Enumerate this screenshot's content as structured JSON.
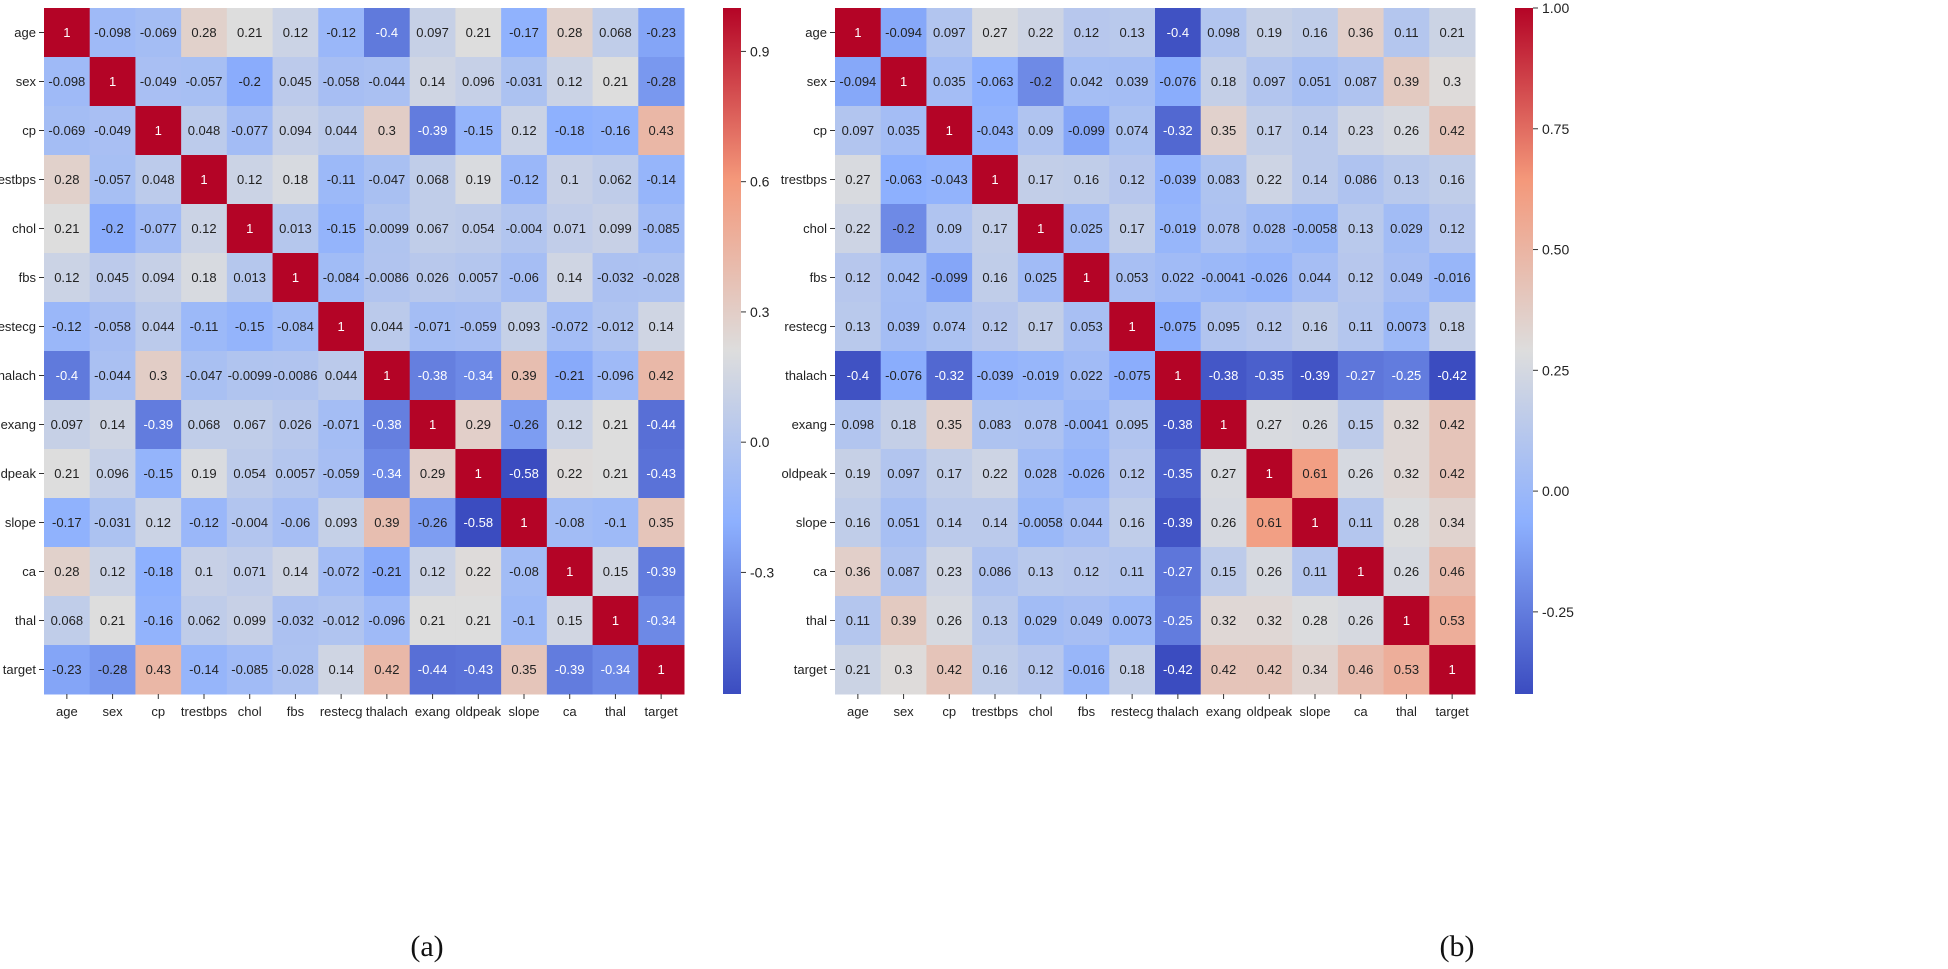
{
  "chart_data": [
    {
      "type": "heatmap",
      "caption": "(a)",
      "labels": [
        "age",
        "sex",
        "cp",
        "trestbps",
        "chol",
        "fbs",
        "restecg",
        "thalach",
        "exang",
        "oldpeak",
        "slope",
        "ca",
        "thal",
        "target"
      ],
      "cell_text": [
        [
          "1",
          "-0.098",
          "-0.069",
          "0.28",
          "0.21",
          "0.12",
          "-0.12",
          "-0.4",
          "0.097",
          "0.21",
          "-0.17",
          "0.28",
          "0.068",
          "-0.23"
        ],
        [
          "-0.098",
          "1",
          "-0.049",
          "-0.057",
          "-0.2",
          "0.045",
          "-0.058",
          "-0.044",
          "0.14",
          "0.096",
          "-0.031",
          "0.12",
          "0.21",
          "-0.28"
        ],
        [
          "-0.069",
          "-0.049",
          "1",
          "0.048",
          "-0.077",
          "0.094",
          "0.044",
          "0.3",
          "-0.39",
          "-0.15",
          "0.12",
          "-0.18",
          "-0.16",
          "0.43"
        ],
        [
          "0.28",
          "-0.057",
          "0.048",
          "1",
          "0.12",
          "0.18",
          "-0.11",
          "-0.047",
          "0.068",
          "0.19",
          "-0.12",
          "0.1",
          "0.062",
          "-0.14"
        ],
        [
          "0.21",
          "-0.2",
          "-0.077",
          "0.12",
          "1",
          "0.013",
          "-0.15",
          "-0.0099",
          "0.067",
          "0.054",
          "-0.004",
          "0.071",
          "0.099",
          "-0.085"
        ],
        [
          "0.12",
          "0.045",
          "0.094",
          "0.18",
          "0.013",
          "1",
          "-0.084",
          "-0.0086",
          "0.026",
          "0.0057",
          "-0.06",
          "0.14",
          "-0.032",
          "-0.028"
        ],
        [
          "-0.12",
          "-0.058",
          "0.044",
          "-0.11",
          "-0.15",
          "-0.084",
          "1",
          "0.044",
          "-0.071",
          "-0.059",
          "0.093",
          "-0.072",
          "-0.012",
          "0.14"
        ],
        [
          "-0.4",
          "-0.044",
          "0.3",
          "-0.047",
          "-0.0099",
          "-0.0086",
          "0.044",
          "1",
          "-0.38",
          "-0.34",
          "0.39",
          "-0.21",
          "-0.096",
          "0.42"
        ],
        [
          "0.097",
          "0.14",
          "-0.39",
          "0.068",
          "0.067",
          "0.026",
          "-0.071",
          "-0.38",
          "1",
          "0.29",
          "-0.26",
          "0.12",
          "0.21",
          "-0.44"
        ],
        [
          "0.21",
          "0.096",
          "-0.15",
          "0.19",
          "0.054",
          "0.0057",
          "-0.059",
          "-0.34",
          "0.29",
          "1",
          "-0.58",
          "0.22",
          "0.21",
          "-0.43"
        ],
        [
          "-0.17",
          "-0.031",
          "0.12",
          "-0.12",
          "-0.004",
          "-0.06",
          "0.093",
          "0.39",
          "-0.26",
          "-0.58",
          "1",
          "-0.08",
          "-0.1",
          "0.35"
        ],
        [
          "0.28",
          "0.12",
          "-0.18",
          "0.1",
          "0.071",
          "0.14",
          "-0.072",
          "-0.21",
          "0.12",
          "0.22",
          "-0.08",
          "1",
          "0.15",
          "-0.39"
        ],
        [
          "0.068",
          "0.21",
          "-0.16",
          "0.062",
          "0.099",
          "-0.032",
          "-0.012",
          "-0.096",
          "0.21",
          "0.21",
          "-0.1",
          "0.15",
          "1",
          "-0.34"
        ],
        [
          "-0.23",
          "-0.28",
          "0.43",
          "-0.14",
          "-0.085",
          "-0.028",
          "0.14",
          "0.42",
          "-0.44",
          "-0.43",
          "0.35",
          "-0.39",
          "-0.34",
          "1"
        ]
      ],
      "vmin": -0.58,
      "vmax": 1,
      "colormap": [
        "#3b4cc0",
        "#dddddd",
        "#b40426"
      ],
      "colorbar_ticks": [
        "0.9",
        "0.6",
        "0.3",
        "0.0",
        "-0.3"
      ],
      "colorbar_values": [
        0.9,
        0.6,
        0.3,
        0.0,
        -0.3
      ]
    },
    {
      "type": "heatmap",
      "caption": "(b)",
      "labels": [
        "age",
        "sex",
        "cp",
        "trestbps",
        "chol",
        "fbs",
        "restecg",
        "thalach",
        "exang",
        "oldpeak",
        "slope",
        "ca",
        "thal",
        "target"
      ],
      "cell_text": [
        [
          "1",
          "-0.094",
          "0.097",
          "0.27",
          "0.22",
          "0.12",
          "0.13",
          "-0.4",
          "0.098",
          "0.19",
          "0.16",
          "0.36",
          "0.11",
          "0.21"
        ],
        [
          "-0.094",
          "1",
          "0.035",
          "-0.063",
          "-0.2",
          "0.042",
          "0.039",
          "-0.076",
          "0.18",
          "0.097",
          "0.051",
          "0.087",
          "0.39",
          "0.3"
        ],
        [
          "0.097",
          "0.035",
          "1",
          "-0.043",
          "0.09",
          "-0.099",
          "0.074",
          "-0.32",
          "0.35",
          "0.17",
          "0.14",
          "0.23",
          "0.26",
          "0.42"
        ],
        [
          "0.27",
          "-0.063",
          "-0.043",
          "1",
          "0.17",
          "0.16",
          "0.12",
          "-0.039",
          "0.083",
          "0.22",
          "0.14",
          "0.086",
          "0.13",
          "0.16"
        ],
        [
          "0.22",
          "-0.2",
          "0.09",
          "0.17",
          "1",
          "0.025",
          "0.17",
          "-0.019",
          "0.078",
          "0.028",
          "-0.0058",
          "0.13",
          "0.029",
          "0.12"
        ],
        [
          "0.12",
          "0.042",
          "-0.099",
          "0.16",
          "0.025",
          "1",
          "0.053",
          "0.022",
          "-0.0041",
          "-0.026",
          "0.044",
          "0.12",
          "0.049",
          "-0.016"
        ],
        [
          "0.13",
          "0.039",
          "0.074",
          "0.12",
          "0.17",
          "0.053",
          "1",
          "-0.075",
          "0.095",
          "0.12",
          "0.16",
          "0.11",
          "0.0073",
          "0.18"
        ],
        [
          "-0.4",
          "-0.076",
          "-0.32",
          "-0.039",
          "-0.019",
          "0.022",
          "-0.075",
          "1",
          "-0.38",
          "-0.35",
          "-0.39",
          "-0.27",
          "-0.25",
          "-0.42"
        ],
        [
          "0.098",
          "0.18",
          "0.35",
          "0.083",
          "0.078",
          "-0.0041",
          "0.095",
          "-0.38",
          "1",
          "0.27",
          "0.26",
          "0.15",
          "0.32",
          "0.42"
        ],
        [
          "0.19",
          "0.097",
          "0.17",
          "0.22",
          "0.028",
          "-0.026",
          "0.12",
          "-0.35",
          "0.27",
          "1",
          "0.61",
          "0.26",
          "0.32",
          "0.42"
        ],
        [
          "0.16",
          "0.051",
          "0.14",
          "0.14",
          "-0.0058",
          "0.044",
          "0.16",
          "-0.39",
          "0.26",
          "0.61",
          "1",
          "0.11",
          "0.28",
          "0.34"
        ],
        [
          "0.36",
          "0.087",
          "0.23",
          "0.086",
          "0.13",
          "0.12",
          "0.11",
          "-0.27",
          "0.15",
          "0.26",
          "0.11",
          "1",
          "0.26",
          "0.46"
        ],
        [
          "0.11",
          "0.39",
          "0.26",
          "0.13",
          "0.029",
          "0.049",
          "0.0073",
          "-0.25",
          "0.32",
          "0.32",
          "0.28",
          "0.26",
          "1",
          "0.53"
        ],
        [
          "0.21",
          "0.3",
          "0.42",
          "0.16",
          "0.12",
          "-0.016",
          "0.18",
          "-0.42",
          "0.42",
          "0.42",
          "0.34",
          "0.46",
          "0.53",
          "1"
        ]
      ],
      "vmin": -0.42,
      "vmax": 1,
      "colormap": [
        "#3b4cc0",
        "#dddddd",
        "#b40426"
      ],
      "colorbar_ticks": [
        "1.00",
        "0.75",
        "0.50",
        "0.25",
        "0.00",
        "-0.25"
      ],
      "colorbar_values": [
        1.0,
        0.75,
        0.5,
        0.25,
        0.0,
        -0.25
      ]
    }
  ]
}
